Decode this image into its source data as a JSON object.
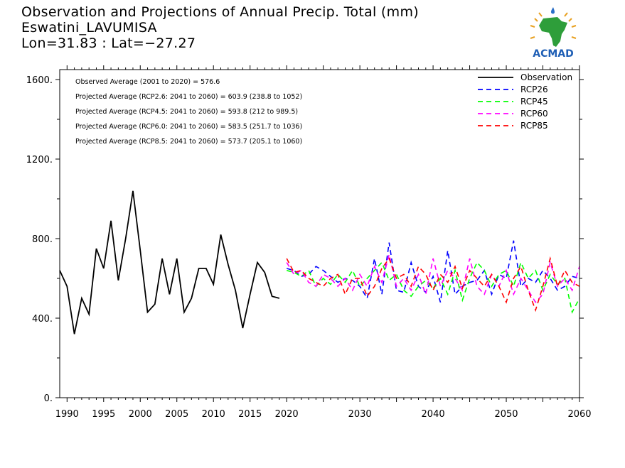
{
  "header": {
    "title": "Observation and Projections of Annual Precip. Total (mm)",
    "station": "Eswatini_LAVUMISA",
    "coords": "Lon=31.83 : Lat=−27.27"
  },
  "logo": {
    "text": "ACMAD",
    "icon": "africa-map-icon"
  },
  "annotations": [
    "Observed Average (2001 to 2020) = 576.6",
    "Projected Average (RCP2.6: 2041 to 2060) = 603.9 (238.8 to 1052)",
    "Projected Average (RCP4.5: 2041 to 2060) = 593.8 (212 to 989.5)",
    "Projected Average (RCP6.0: 2041 to 2060) = 583.5 (251.7 to 1036)",
    "Projected Average (RCP8.5: 2041 to 2060) = 573.7 (205.1 to 1060)"
  ],
  "chart_data": {
    "type": "line",
    "xlim": [
      1989,
      2060
    ],
    "ylim": [
      0,
      1650
    ],
    "yticks": [
      0,
      400,
      800,
      1200,
      1600
    ],
    "ytick_labels": [
      "0.",
      "400.",
      "800.",
      "1200.",
      "1600."
    ],
    "xticks": [
      1990,
      1995,
      2000,
      2005,
      2010,
      2015,
      2020,
      2030,
      2040,
      2050,
      2060
    ],
    "xtick_labels": [
      "1990",
      "1995",
      "2000",
      "2005",
      "2010",
      "2015",
      "2020",
      "2030",
      "2040",
      "2050",
      "2060"
    ],
    "legend_position": "top-right",
    "series": [
      {
        "name": "Observation",
        "color": "#000000",
        "dash": false,
        "x": [
          1989,
          1990,
          1991,
          1992,
          1993,
          1994,
          1995,
          1996,
          1997,
          1998,
          1999,
          2000,
          2001,
          2002,
          2003,
          2004,
          2005,
          2006,
          2007,
          2008,
          2009,
          2010,
          2011,
          2012,
          2013,
          2014,
          2015,
          2016,
          2017,
          2018,
          2019
        ],
        "y": [
          640,
          560,
          320,
          500,
          420,
          750,
          650,
          890,
          590,
          800,
          1040,
          740,
          430,
          470,
          700,
          520,
          700,
          430,
          500,
          650,
          650,
          570,
          820,
          670,
          540,
          350,
          520,
          680,
          630,
          510,
          500
        ]
      },
      {
        "name": "RCP26",
        "color": "#0000ff",
        "dash": true,
        "x": [
          2020,
          2021,
          2022,
          2023,
          2024,
          2025,
          2026,
          2027,
          2028,
          2029,
          2030,
          2031,
          2032,
          2033,
          2034,
          2035,
          2036,
          2037,
          2038,
          2039,
          2040,
          2041,
          2042,
          2043,
          2044,
          2045,
          2046,
          2047,
          2048,
          2049,
          2050,
          2051,
          2052,
          2053,
          2054,
          2055,
          2056,
          2057,
          2058,
          2059,
          2060
        ],
        "y": [
          650,
          640,
          610,
          620,
          660,
          640,
          610,
          580,
          600,
          590,
          560,
          500,
          700,
          520,
          780,
          540,
          530,
          680,
          560,
          530,
          610,
          480,
          740,
          520,
          560,
          580,
          590,
          640,
          520,
          620,
          600,
          790,
          560,
          600,
          580,
          640,
          600,
          540,
          560,
          610,
          600
        ]
      },
      {
        "name": "RCP45",
        "color": "#00ff00",
        "dash": true,
        "x": [
          2020,
          2021,
          2022,
          2023,
          2024,
          2025,
          2026,
          2027,
          2028,
          2029,
          2030,
          2031,
          2032,
          2033,
          2034,
          2035,
          2036,
          2037,
          2038,
          2039,
          2040,
          2041,
          2042,
          2043,
          2044,
          2045,
          2046,
          2047,
          2048,
          2049,
          2050,
          2051,
          2052,
          2053,
          2054,
          2055,
          2056,
          2057,
          2058,
          2059,
          2060
        ],
        "y": [
          640,
          630,
          610,
          640,
          560,
          600,
          570,
          620,
          580,
          640,
          560,
          600,
          640,
          680,
          590,
          620,
          540,
          510,
          560,
          590,
          550,
          600,
          520,
          640,
          490,
          600,
          680,
          640,
          560,
          620,
          640,
          560,
          680,
          600,
          640,
          540,
          620,
          570,
          600,
          430,
          500
        ]
      },
      {
        "name": "RCP60",
        "color": "#ff00ff",
        "dash": true,
        "x": [
          2020,
          2021,
          2022,
          2023,
          2024,
          2025,
          2026,
          2027,
          2028,
          2029,
          2030,
          2031,
          2032,
          2033,
          2034,
          2035,
          2036,
          2037,
          2038,
          2039,
          2040,
          2041,
          2042,
          2043,
          2044,
          2045,
          2046,
          2047,
          2048,
          2049,
          2050,
          2051,
          2052,
          2053,
          2054,
          2055,
          2056,
          2057,
          2058,
          2059,
          2060
        ],
        "y": [
          680,
          620,
          640,
          580,
          560,
          620,
          600,
          560,
          600,
          540,
          620,
          560,
          660,
          580,
          720,
          560,
          600,
          540,
          620,
          520,
          700,
          560,
          640,
          600,
          540,
          700,
          560,
          520,
          620,
          560,
          640,
          520,
          600,
          540,
          480,
          520,
          680,
          560,
          600,
          540,
          660
        ]
      },
      {
        "name": "RCP85",
        "color": "#ff0000",
        "dash": true,
        "x": [
          2020,
          2021,
          2022,
          2023,
          2024,
          2025,
          2026,
          2027,
          2028,
          2029,
          2030,
          2031,
          2032,
          2033,
          2034,
          2035,
          2036,
          2037,
          2038,
          2039,
          2040,
          2041,
          2042,
          2043,
          2044,
          2045,
          2046,
          2047,
          2048,
          2049,
          2050,
          2051,
          2052,
          2053,
          2054,
          2055,
          2056,
          2057,
          2058,
          2059,
          2060
        ],
        "y": [
          700,
          630,
          640,
          600,
          580,
          560,
          600,
          620,
          520,
          600,
          600,
          510,
          560,
          650,
          700,
          600,
          620,
          560,
          660,
          620,
          540,
          620,
          580,
          660,
          550,
          640,
          600,
          560,
          620,
          560,
          480,
          600,
          660,
          540,
          440,
          560,
          700,
          560,
          640,
          580,
          560
        ]
      }
    ]
  }
}
